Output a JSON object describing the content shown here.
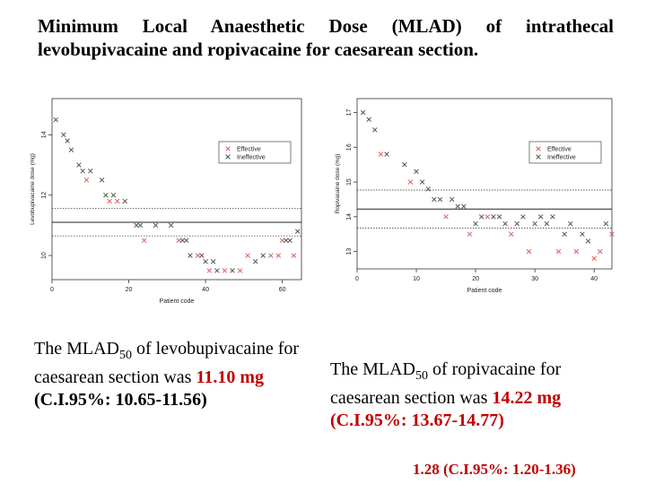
{
  "title": "Minimum Local Anaesthetic Dose (MLAD) of intrathecal levobupivacaine and ropivacaine for caesarean section.",
  "result_left": {
    "prefix": "The MLAD",
    "sub": "50",
    "mid": " of levobupivacaine for caesarean section was ",
    "dose": "11.10 mg",
    "ci": "(C.I.95%:  10.65-11.56)"
  },
  "result_right": {
    "prefix": "The MLAD",
    "sub": "50",
    "mid": " of ropivacaine for caesarean section was ",
    "dose": "14.22  mg",
    "ci": "(C.I.95%:  13.67-14.77)"
  },
  "footer": "1.28 (C.I.95%: 1.20-1.36)",
  "colors": {
    "effective": "#e06060",
    "ineffective": "#555555",
    "highlight": "#c00000"
  },
  "chart_data": [
    {
      "type": "scatter",
      "xlabel": "Patient code",
      "ylabel": "Levobupivacaine dose (mg)",
      "xlim": [
        0,
        65
      ],
      "ylim": [
        9.2,
        15.2
      ],
      "xticks": [
        0,
        20,
        40,
        60
      ],
      "yticks": [
        10,
        12,
        14
      ],
      "legend": {
        "position": "top-right",
        "entries": [
          "Effective",
          "Ineffective"
        ]
      },
      "hlines": [
        {
          "y": 11.1,
          "style": "solid"
        },
        {
          "y": 10.65,
          "style": "dotted"
        },
        {
          "y": 11.56,
          "style": "dotted"
        }
      ],
      "series": [
        {
          "name": "Effective",
          "points": [
            [
              9,
              12.5
            ],
            [
              15,
              11.8
            ],
            [
              17,
              11.8
            ],
            [
              24,
              10.5
            ],
            [
              33,
              10.5
            ],
            [
              38,
              10.0
            ],
            [
              41,
              9.5
            ],
            [
              45,
              9.5
            ],
            [
              49,
              9.5
            ],
            [
              51,
              10.0
            ],
            [
              57,
              10.0
            ],
            [
              59,
              10.0
            ],
            [
              60,
              10.5
            ],
            [
              63,
              10.0
            ]
          ]
        },
        {
          "name": "Ineffective",
          "points": [
            [
              1,
              14.5
            ],
            [
              3,
              14.0
            ],
            [
              4,
              13.8
            ],
            [
              5,
              13.5
            ],
            [
              7,
              13.0
            ],
            [
              8,
              12.8
            ],
            [
              10,
              12.8
            ],
            [
              13,
              12.5
            ],
            [
              14,
              12.0
            ],
            [
              16,
              12.0
            ],
            [
              19,
              11.8
            ],
            [
              22,
              11.0
            ],
            [
              23,
              11.0
            ],
            [
              27,
              11.0
            ],
            [
              31,
              11.0
            ],
            [
              34,
              10.5
            ],
            [
              35,
              10.5
            ],
            [
              36,
              10.0
            ],
            [
              39,
              10.0
            ],
            [
              40,
              9.8
            ],
            [
              42,
              9.8
            ],
            [
              43,
              9.5
            ],
            [
              47,
              9.5
            ],
            [
              53,
              9.8
            ],
            [
              55,
              10.0
            ],
            [
              61,
              10.5
            ],
            [
              62,
              10.5
            ],
            [
              64,
              10.8
            ]
          ]
        }
      ]
    },
    {
      "type": "scatter",
      "xlabel": "Patient code",
      "ylabel": "Ropivacaine dose (mg)",
      "xlim": [
        0,
        43
      ],
      "ylim": [
        12.5,
        17.4
      ],
      "xticks": [
        0,
        10,
        20,
        30,
        40
      ],
      "yticks": [
        13,
        14,
        15,
        16,
        17
      ],
      "legend": {
        "position": "top-right",
        "entries": [
          "Effective",
          "Ineffective"
        ]
      },
      "hlines": [
        {
          "y": 14.22,
          "style": "solid"
        },
        {
          "y": 13.67,
          "style": "dotted"
        },
        {
          "y": 14.77,
          "style": "dotted"
        }
      ],
      "series": [
        {
          "name": "Effective",
          "points": [
            [
              4,
              15.8
            ],
            [
              9,
              15.0
            ],
            [
              15,
              14.0
            ],
            [
              19,
              13.5
            ],
            [
              22,
              14.0
            ],
            [
              26,
              13.5
            ],
            [
              29,
              13.0
            ],
            [
              34,
              13.0
            ],
            [
              37,
              13.0
            ],
            [
              40,
              12.8
            ],
            [
              41,
              13.0
            ],
            [
              43,
              13.5
            ]
          ]
        },
        {
          "name": "Ineffective",
          "points": [
            [
              1,
              17.0
            ],
            [
              2,
              16.8
            ],
            [
              3,
              16.5
            ],
            [
              5,
              15.8
            ],
            [
              8,
              15.5
            ],
            [
              10,
              15.3
            ],
            [
              11,
              15.0
            ],
            [
              12,
              14.8
            ],
            [
              13,
              14.5
            ],
            [
              14,
              14.5
            ],
            [
              16,
              14.5
            ],
            [
              17,
              14.3
            ],
            [
              18,
              14.3
            ],
            [
              20,
              13.8
            ],
            [
              21,
              14.0
            ],
            [
              23,
              14.0
            ],
            [
              24,
              14.0
            ],
            [
              25,
              13.8
            ],
            [
              27,
              13.8
            ],
            [
              28,
              14.0
            ],
            [
              30,
              13.8
            ],
            [
              31,
              14.0
            ],
            [
              32,
              13.8
            ],
            [
              33,
              14.0
            ],
            [
              35,
              13.5
            ],
            [
              36,
              13.8
            ],
            [
              38,
              13.5
            ],
            [
              39,
              13.3
            ],
            [
              42,
              13.8
            ]
          ]
        }
      ]
    }
  ]
}
